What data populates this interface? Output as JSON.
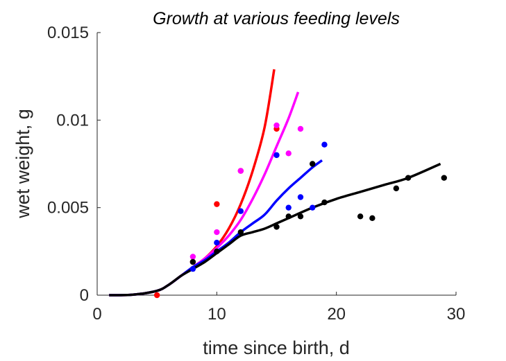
{
  "chart_data": {
    "type": "scatter",
    "title": "Growth at various feeding levels",
    "xlabel": "time since birth, d",
    "ylabel": "wet weight, g",
    "xlim": [
      0,
      30
    ],
    "ylim": [
      0,
      0.015
    ],
    "xticks": [
      0,
      10,
      20,
      30
    ],
    "xtick_labels": [
      "0",
      "10",
      "20",
      "30"
    ],
    "yticks": [
      0,
      0.005,
      0.01,
      0.015
    ],
    "ytick_labels": [
      "0",
      "0.005",
      "0.01",
      "0.015"
    ],
    "grid": false,
    "series": [
      {
        "color": "#ff0000",
        "points": [
          [
            5,
            0.0
          ],
          [
            8,
            0.0019
          ],
          [
            10,
            0.0052
          ],
          [
            12,
            0.0071
          ],
          [
            15,
            0.0095
          ]
        ],
        "curve": [
          [
            1,
            0.0
          ],
          [
            3,
            3e-05
          ],
          [
            5,
            0.00025
          ],
          [
            6,
            0.0006
          ],
          [
            7,
            0.0011
          ],
          [
            8,
            0.0016
          ],
          [
            9,
            0.0021
          ],
          [
            10,
            0.0028
          ],
          [
            11,
            0.0038
          ],
          [
            12,
            0.0052
          ],
          [
            13,
            0.0071
          ],
          [
            14,
            0.0096
          ],
          [
            14.8,
            0.0129
          ]
        ]
      },
      {
        "color": "#ff00ff",
        "points": [
          [
            8,
            0.0022
          ],
          [
            10,
            0.0036
          ],
          [
            12,
            0.0071
          ],
          [
            15,
            0.0097
          ],
          [
            16,
            0.0081
          ],
          [
            17,
            0.0095
          ]
        ],
        "curve": [
          [
            1,
            0.0
          ],
          [
            3,
            3e-05
          ],
          [
            5,
            0.00025
          ],
          [
            6,
            0.0006
          ],
          [
            7,
            0.0011
          ],
          [
            8,
            0.0016
          ],
          [
            9,
            0.0021
          ],
          [
            10,
            0.0027
          ],
          [
            11,
            0.0034
          ],
          [
            12,
            0.0043
          ],
          [
            13,
            0.0055
          ],
          [
            14,
            0.0069
          ],
          [
            15,
            0.0085
          ],
          [
            16,
            0.0101
          ],
          [
            16.8,
            0.0116
          ]
        ]
      },
      {
        "color": "#0000ff",
        "points": [
          [
            8,
            0.0015
          ],
          [
            10,
            0.003
          ],
          [
            12,
            0.0048
          ],
          [
            15,
            0.008
          ],
          [
            16,
            0.005
          ],
          [
            17,
            0.0056
          ],
          [
            18,
            0.005
          ],
          [
            19,
            0.0086
          ]
        ],
        "curve": [
          [
            1,
            0.0
          ],
          [
            3,
            3e-05
          ],
          [
            5,
            0.00025
          ],
          [
            6,
            0.0006
          ],
          [
            7,
            0.0011
          ],
          [
            8,
            0.0016
          ],
          [
            9,
            0.002
          ],
          [
            10,
            0.0025
          ],
          [
            11,
            0.003
          ],
          [
            12,
            0.0036
          ],
          [
            13,
            0.0041
          ],
          [
            14,
            0.0046
          ],
          [
            15,
            0.0054
          ],
          [
            16,
            0.0061
          ],
          [
            17,
            0.0067
          ],
          [
            18,
            0.0073
          ],
          [
            18.8,
            0.0077
          ]
        ]
      },
      {
        "color": "#000000",
        "points": [
          [
            8,
            0.0019
          ],
          [
            10,
            0.0025
          ],
          [
            12,
            0.0036
          ],
          [
            15,
            0.0039
          ],
          [
            16,
            0.0045
          ],
          [
            17,
            0.0045
          ],
          [
            18,
            0.0075
          ],
          [
            19,
            0.0053
          ],
          [
            22,
            0.0045
          ],
          [
            23,
            0.0044
          ],
          [
            25,
            0.0061
          ],
          [
            26,
            0.0067
          ],
          [
            29,
            0.0067
          ]
        ],
        "curve": [
          [
            1,
            0.0
          ],
          [
            3,
            3e-05
          ],
          [
            5,
            0.00025
          ],
          [
            6,
            0.0006
          ],
          [
            7,
            0.0011
          ],
          [
            8,
            0.0015
          ],
          [
            9,
            0.0019
          ],
          [
            10,
            0.0024
          ],
          [
            11,
            0.0029
          ],
          [
            12,
            0.0034
          ],
          [
            13,
            0.0036
          ],
          [
            14,
            0.0038
          ],
          [
            15,
            0.0041
          ],
          [
            16,
            0.0044
          ],
          [
            18,
            0.005
          ],
          [
            20,
            0.0055
          ],
          [
            22,
            0.0059
          ],
          [
            24,
            0.0063
          ],
          [
            26,
            0.0067
          ],
          [
            28.7,
            0.0075
          ]
        ]
      }
    ]
  }
}
